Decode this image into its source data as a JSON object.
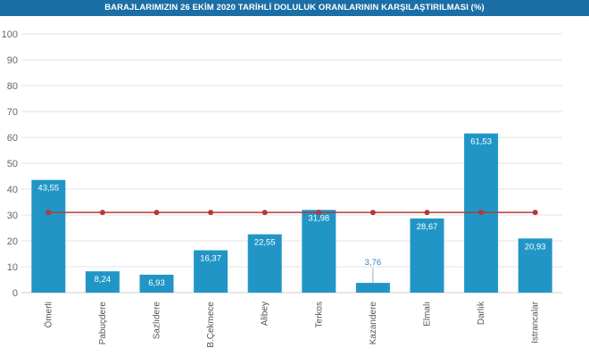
{
  "chart_data": {
    "type": "bar",
    "title": "BARAJLARIMIZIN 26 EKİM 2020 TARİHLİ DOLULUK ORANLARININ KARŞILAŞTIRILMASI (%)",
    "xlabel": "",
    "ylabel": "",
    "ylim": [
      0,
      100
    ],
    "yticks": [
      "0",
      "10",
      "20",
      "30",
      "40",
      "50",
      "60",
      "70",
      "80",
      "90",
      "100"
    ],
    "grid": true,
    "categories": [
      "Ömerli",
      "Pabuçdere",
      "Sazlıdere",
      "B.Çekmece",
      "Alibey",
      "Terkos",
      "Kazandere",
      "Elmalı",
      "Darlık",
      "Istrancalar"
    ],
    "series": [
      {
        "values": [
          43.55,
          8.24,
          6.93,
          16.37,
          22.55,
          31.98,
          3.76,
          28.67,
          61.53,
          20.93
        ],
        "labels": [
          "43,55",
          "8,24",
          "6,93",
          "16,37",
          "22,55",
          "31,98",
          "3,76",
          "28,67",
          "61,53",
          "20,93"
        ],
        "color": "#2196c6"
      },
      {
        "type": "line",
        "values": [
          31,
          31,
          31,
          31,
          31,
          31,
          31,
          31,
          31,
          31
        ],
        "color": "#b23a3a"
      }
    ]
  },
  "colors": {
    "title_bg": "#1b6fa6",
    "bar": "#2196c6",
    "line": "#b23a3a",
    "grid": "#e3e3e3"
  }
}
